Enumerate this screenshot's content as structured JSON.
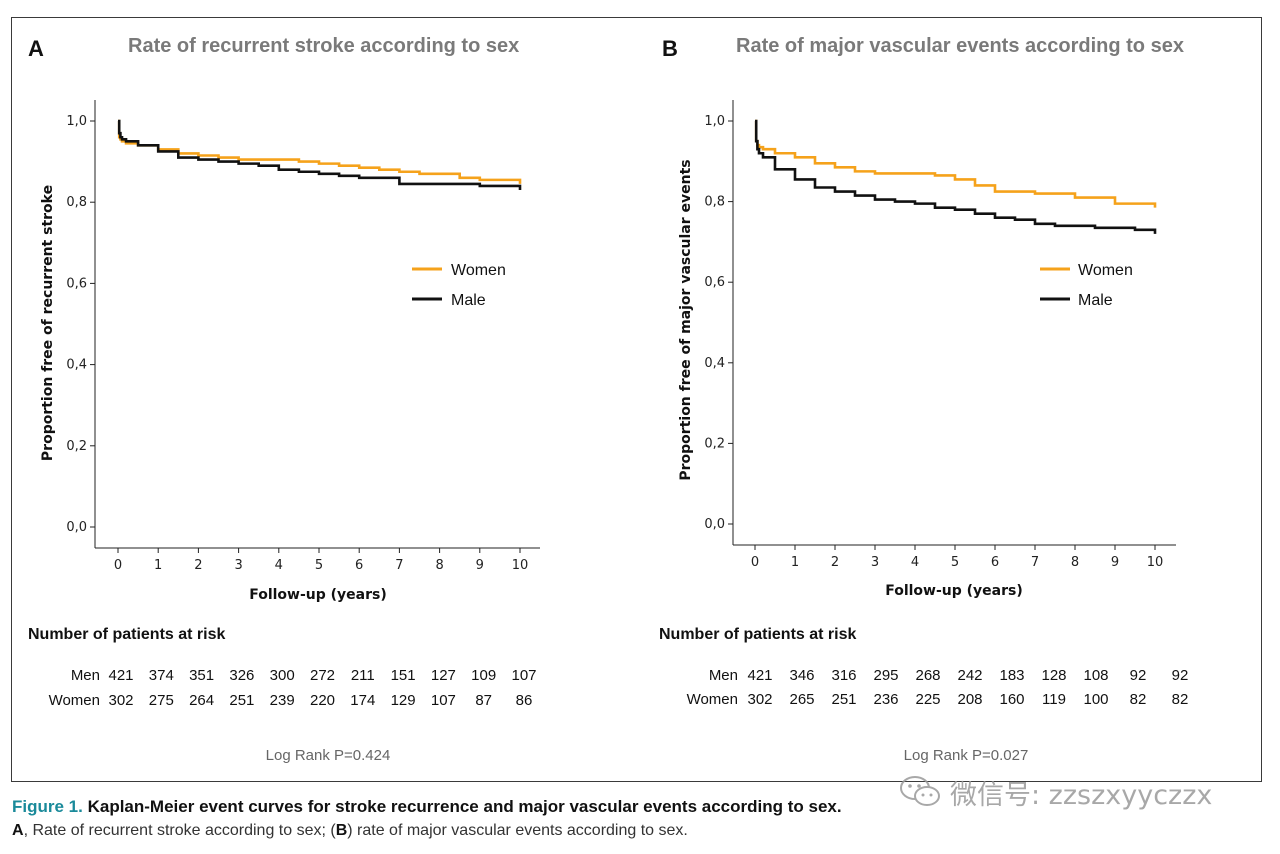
{
  "panels": [
    {
      "letter": "A",
      "title": "Rate of recurrent stroke according to sex",
      "ylabel": "Proportion free of recurrent stroke",
      "xlabel": "Follow-up (years)",
      "legend": [
        "Women",
        "Male"
      ],
      "risk_header": "Number of patients at risk",
      "risk_rows": [
        {
          "label": "Men",
          "values": [
            "421",
            "374",
            "351",
            "326",
            "300",
            "272",
            "211",
            "151",
            "127",
            "109",
            "107"
          ]
        },
        {
          "label": "Women",
          "values": [
            "302",
            "275",
            "264",
            "251",
            "239",
            "220",
            "174",
            "129",
            "107",
            "87",
            "86"
          ]
        }
      ],
      "logrank": "Log Rank P=0.424"
    },
    {
      "letter": "B",
      "title": "Rate of major vascular events according to sex",
      "ylabel": "Proportion free of major vascular events",
      "xlabel": "Follow-up (years)",
      "legend": [
        "Women",
        "Male"
      ],
      "risk_header": "Number of patients at risk",
      "risk_rows": [
        {
          "label": "Men",
          "values": [
            "421",
            "346",
            "316",
            "295",
            "268",
            "242",
            "183",
            "128",
            "108",
            "92",
            "92"
          ]
        },
        {
          "label": "Women",
          "values": [
            "302",
            "265",
            "251",
            "236",
            "225",
            "208",
            "160",
            "119",
            "100",
            "82",
            "82"
          ]
        }
      ],
      "logrank": "Log Rank P=0.027"
    }
  ],
  "caption": {
    "figure_label": "Figure 1.",
    "title": "Kaplan-Meier event curves for stroke recurrence  and major vascular events according to sex.",
    "line2_a": "A",
    "line2_a_text": ", Rate of recurrent stroke according to sex; (",
    "line2_b": "B",
    "line2_b_text": ") rate of major vascular events according to sex."
  },
  "watermark": "微信号: zzszxyyczzx",
  "colors": {
    "women": "#f5a21b",
    "male": "#111111"
  },
  "chart_data": [
    {
      "type": "line",
      "title": "Rate of recurrent stroke according to sex",
      "xlabel": "Follow-up (years)",
      "ylabel": "Proportion free of recurrent stroke",
      "xlim": [
        0,
        10
      ],
      "ylim": [
        0,
        1
      ],
      "xticks": [
        "0",
        "1",
        "2",
        "3",
        "4",
        "5",
        "6",
        "7",
        "8",
        "9",
        "10"
      ],
      "yticks": [
        "0,0",
        "0,2",
        "0,4",
        "0,6",
        "0,8",
        "1,0"
      ],
      "legend_position": "right",
      "series": [
        {
          "name": "Women",
          "color": "#f5a21b",
          "x": [
            0,
            0.03,
            0.06,
            0.1,
            0.2,
            0.5,
            1,
            1.5,
            2,
            2.5,
            3,
            3.5,
            4,
            4.5,
            5,
            5.5,
            6,
            6.5,
            7,
            7.5,
            8,
            8.5,
            9,
            9.5,
            10
          ],
          "y": [
            1.0,
            0.96,
            0.955,
            0.95,
            0.945,
            0.94,
            0.93,
            0.92,
            0.915,
            0.91,
            0.905,
            0.905,
            0.905,
            0.9,
            0.895,
            0.89,
            0.885,
            0.88,
            0.875,
            0.87,
            0.87,
            0.86,
            0.855,
            0.855,
            0.845
          ]
        },
        {
          "name": "Male",
          "color": "#111111",
          "x": [
            0,
            0.03,
            0.06,
            0.1,
            0.2,
            0.5,
            1,
            1.5,
            2,
            2.5,
            3,
            3.5,
            4,
            4.5,
            5,
            5.5,
            6,
            6.5,
            7,
            7.5,
            8,
            8.5,
            9,
            9.5,
            10
          ],
          "y": [
            1.0,
            0.97,
            0.96,
            0.955,
            0.95,
            0.94,
            0.925,
            0.91,
            0.905,
            0.9,
            0.895,
            0.89,
            0.88,
            0.875,
            0.87,
            0.865,
            0.86,
            0.86,
            0.845,
            0.845,
            0.845,
            0.845,
            0.84,
            0.84,
            0.83
          ]
        }
      ]
    },
    {
      "type": "line",
      "title": "Rate of major vascular events according to sex",
      "xlabel": "Follow-up (years)",
      "ylabel": "Proportion free of major vascular events",
      "xlim": [
        0,
        10
      ],
      "ylim": [
        0,
        1
      ],
      "xticks": [
        "0",
        "1",
        "2",
        "3",
        "4",
        "5",
        "6",
        "7",
        "8",
        "9",
        "10"
      ],
      "yticks": [
        "0,0",
        "0,2",
        "0,4",
        "0,6",
        "0,8",
        "1,0"
      ],
      "legend_position": "right",
      "series": [
        {
          "name": "Women",
          "color": "#f5a21b",
          "x": [
            0,
            0.03,
            0.06,
            0.1,
            0.2,
            0.5,
            1,
            1.5,
            2,
            2.5,
            3,
            3.5,
            4,
            4.5,
            5,
            5.5,
            6,
            6.5,
            7,
            7.5,
            8,
            8.5,
            9,
            9.5,
            10
          ],
          "y": [
            1.0,
            0.95,
            0.94,
            0.935,
            0.93,
            0.92,
            0.91,
            0.895,
            0.885,
            0.875,
            0.87,
            0.87,
            0.87,
            0.865,
            0.855,
            0.84,
            0.825,
            0.825,
            0.82,
            0.82,
            0.81,
            0.81,
            0.795,
            0.795,
            0.785
          ]
        },
        {
          "name": "Male",
          "color": "#111111",
          "x": [
            0,
            0.03,
            0.06,
            0.1,
            0.2,
            0.5,
            1,
            1.5,
            2,
            2.5,
            3,
            3.5,
            4,
            4.5,
            5,
            5.5,
            6,
            6.5,
            7,
            7.5,
            8,
            8.5,
            9,
            9.5,
            10
          ],
          "y": [
            1.0,
            0.95,
            0.93,
            0.92,
            0.91,
            0.88,
            0.855,
            0.835,
            0.825,
            0.815,
            0.805,
            0.8,
            0.795,
            0.785,
            0.78,
            0.77,
            0.76,
            0.755,
            0.745,
            0.74,
            0.74,
            0.735,
            0.735,
            0.73,
            0.72
          ]
        }
      ]
    }
  ]
}
